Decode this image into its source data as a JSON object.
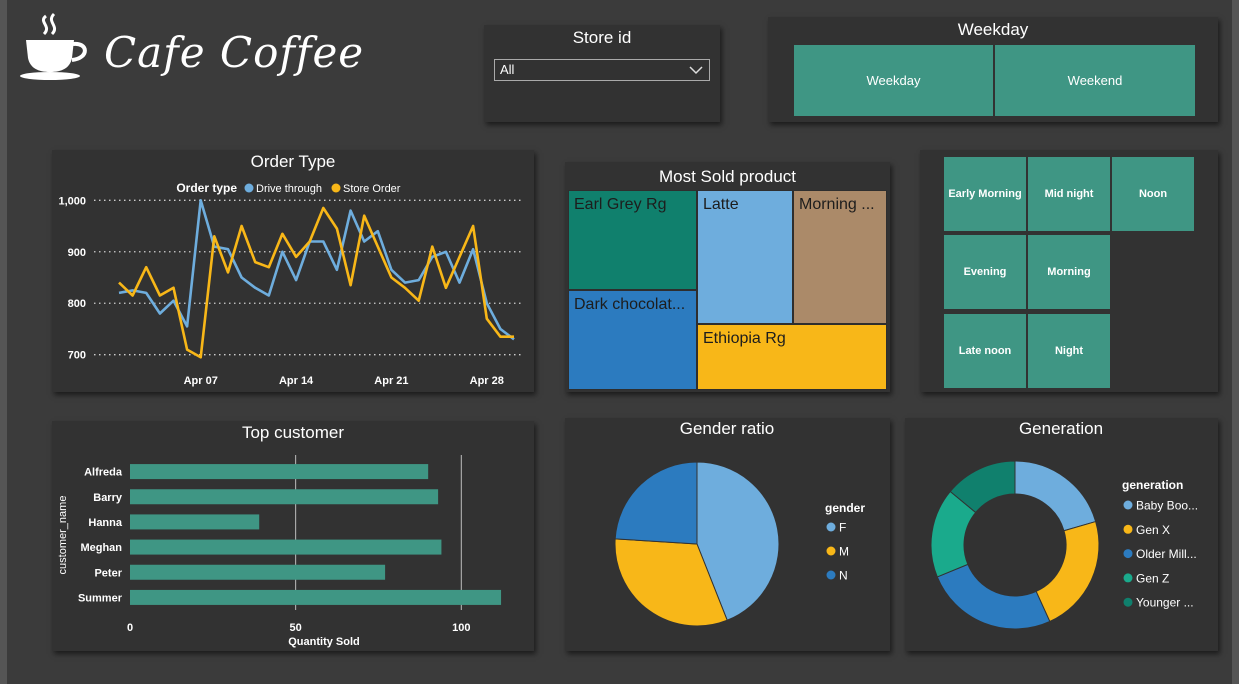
{
  "header": {
    "title": "Cafe Coffee",
    "logo_icon": "coffee-cup-icon"
  },
  "store_filter": {
    "title": "Store id",
    "selected": "All",
    "icon": "chevron-down-icon"
  },
  "weekday_filter": {
    "title": "Weekday",
    "options": [
      "Weekday",
      "Weekend"
    ]
  },
  "time_of_day": {
    "tiles": [
      "Early Morning",
      "Mid night",
      "Noon",
      "Evening",
      "Morning",
      "Late noon",
      "Night"
    ]
  },
  "colors": {
    "teal": "#3f9684",
    "blue": "#6eaddd",
    "gold": "#f8b718",
    "dark_blue": "#2c7bbf",
    "panel": "#323232",
    "background": "#3b3b3b"
  },
  "order_type": {
    "title": "Order Type",
    "chart_data": {
      "type": "line",
      "legend_title": "Order type",
      "legend_position": "top",
      "x_start": "Apr 01",
      "x_tick_labels": [
        "Apr 07",
        "Apr 14",
        "Apr 21",
        "Apr 28"
      ],
      "y_ticks": [
        700,
        800,
        900,
        1000
      ],
      "y_tick_labels": [
        "700",
        "800",
        "900",
        "1,000"
      ],
      "ylim": [
        680,
        1020
      ],
      "grid": true,
      "series": [
        {
          "name": "Drive through",
          "color": "#6eaddd",
          "values": [
            820,
            825,
            820,
            780,
            805,
            755,
            1000,
            910,
            905,
            850,
            830,
            815,
            900,
            845,
            920,
            920,
            865,
            980,
            920,
            940,
            865,
            840,
            845,
            890,
            900,
            840,
            905,
            800,
            750,
            730
          ]
        },
        {
          "name": "Store Order",
          "color": "#f8b718",
          "values": [
            840,
            815,
            870,
            815,
            830,
            710,
            695,
            930,
            860,
            950,
            880,
            870,
            935,
            890,
            920,
            985,
            945,
            835,
            970,
            910,
            850,
            830,
            805,
            910,
            830,
            890,
            950,
            770,
            735,
            735
          ]
        }
      ]
    }
  },
  "most_sold": {
    "title": "Most Sold product",
    "chart_data": {
      "type": "treemap",
      "items": [
        {
          "name": "Earl Grey Rg",
          "label": "Earl Grey Rg",
          "color": "#10806d"
        },
        {
          "name": "Latte",
          "label": "Latte",
          "color": "#6eaddd"
        },
        {
          "name": "Morning Sunrise",
          "label": "Morning ...",
          "color": "#ab8a69"
        },
        {
          "name": "Dark chocolate",
          "label": "Dark chocolat...",
          "color": "#2c7bbf"
        },
        {
          "name": "Ethiopia Rg",
          "label": "Ethiopia Rg",
          "color": "#f8b718"
        }
      ]
    }
  },
  "top_customer": {
    "title": "Top customer",
    "chart_data": {
      "type": "bar",
      "orientation": "horizontal",
      "categories": [
        "Alfreda",
        "Barry",
        "Hanna",
        "Meghan",
        "Peter",
        "Summer"
      ],
      "values": [
        90,
        93,
        39,
        94,
        77,
        112
      ],
      "xlabel": "Quantity Sold",
      "ylabel": "customer_name",
      "x_ticks": [
        0,
        50,
        100
      ],
      "xlim": [
        0,
        115
      ],
      "grid": true,
      "color": "#3f9684"
    }
  },
  "gender_ratio": {
    "title": "Gender ratio",
    "chart_data": {
      "type": "pie",
      "legend_title": "gender",
      "legend_position": "right",
      "labels": [
        "F",
        "M",
        "N"
      ],
      "values": [
        44,
        32,
        24
      ],
      "colors": [
        "#6eaddd",
        "#f8b718",
        "#2c7bbf"
      ]
    }
  },
  "generation": {
    "title": "Generation",
    "chart_data": {
      "type": "donut",
      "legend_title": "generation",
      "legend_position": "right",
      "labels": [
        "Baby Boo...",
        "Gen X",
        "Older Mill...",
        "Gen Z",
        "Younger ..."
      ],
      "values": [
        20.5,
        22.7,
        25.6,
        17.2,
        14.0
      ],
      "colors": [
        "#6eaddd",
        "#f8b718",
        "#2c7bbf",
        "#1aaa8c",
        "#10806d"
      ]
    }
  }
}
